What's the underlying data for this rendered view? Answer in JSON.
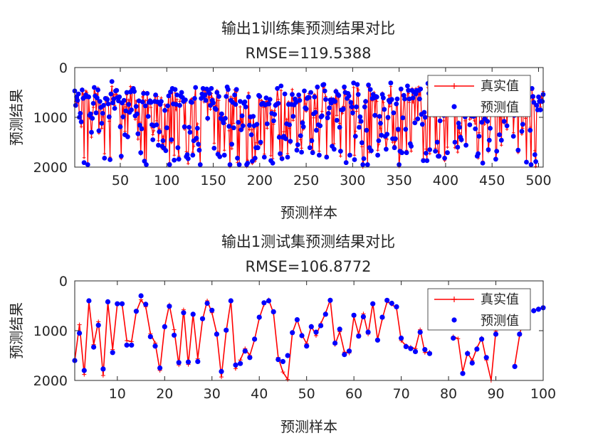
{
  "chart_data": [
    {
      "type": "line",
      "title": "输出1训练集预测结果对比",
      "subtitle": "RMSE=119.5388",
      "xlabel": "预测样本",
      "ylabel": "预测结果",
      "xlim": [
        1,
        505
      ],
      "ylim": [
        2000,
        0
      ],
      "y_reversed": true,
      "xticks": [
        50,
        100,
        150,
        200,
        250,
        300,
        350,
        400,
        450,
        500
      ],
      "yticks": [
        0,
        1000,
        2000
      ],
      "grid": false,
      "legend_position": "top-right",
      "n_points": 505,
      "seed": 11,
      "series": [
        {
          "name": "真实值",
          "color": "#ff0000",
          "style": "line-plus"
        },
        {
          "name": "预测值",
          "color": "#0000ff",
          "style": "dot"
        }
      ]
    },
    {
      "type": "line",
      "title": "输出1测试集预测结果对比",
      "subtitle": "RMSE=106.8772",
      "xlabel": "预测样本",
      "ylabel": "预测结果",
      "xlim": [
        1,
        100
      ],
      "ylim": [
        2000,
        0
      ],
      "y_reversed": true,
      "xticks": [
        10,
        20,
        30,
        40,
        50,
        60,
        70,
        80,
        90,
        100
      ],
      "yticks": [
        0,
        1000,
        2000
      ],
      "grid": false,
      "legend_position": "top-right",
      "series": [
        {
          "name": "真实值",
          "color": "#ff0000",
          "style": "line-plus",
          "values": [
            1600,
            880,
            1880,
            420,
            1280,
            820,
            1900,
            430,
            1380,
            460,
            470,
            1200,
            1220,
            620,
            380,
            520,
            1060,
            1250,
            1800,
            920,
            480,
            980,
            1690,
            580,
            1680,
            670,
            1560,
            780,
            400,
            640,
            1050,
            1930,
            1020,
            400,
            1760,
            1590,
            1360,
            1500,
            1180,
            750,
            470,
            380,
            650,
            1540,
            1830,
            1980,
            1040,
            780,
            1080,
            1260,
            910,
            1100,
            860,
            650,
            380,
            1280,
            1020,
            1430,
            1450,
            720,
            1070,
            660,
            1070,
            450,
            1180,
            760,
            420,
            470,
            550,
            1200,
            1300,
            1330,
            1360,
            980,
            1440,
            1430,
            null,
            null,
            null,
            null,
            1120,
            1160,
            1830,
            1440,
            1600,
            1350,
            1150,
            1590,
            2000,
            1010,
            null,
            null,
            null,
            1690,
            1100,
            650,
            null,
            590,
            560,
            540
          ]
        },
        {
          "name": "预测值",
          "color": "#0000ff",
          "style": "dot",
          "values": [
            1600,
            1050,
            1800,
            400,
            1330,
            890,
            1770,
            420,
            1440,
            460,
            460,
            1290,
            1290,
            610,
            300,
            470,
            1120,
            1310,
            1750,
            920,
            510,
            1090,
            1640,
            640,
            1630,
            670,
            1620,
            760,
            450,
            590,
            1070,
            1820,
            990,
            400,
            1690,
            1660,
            1410,
            1540,
            1170,
            730,
            440,
            400,
            620,
            1580,
            1620,
            1500,
            1040,
            780,
            1100,
            1310,
            920,
            1030,
            900,
            670,
            390,
            1250,
            970,
            1480,
            1410,
            690,
            1110,
            720,
            1030,
            460,
            1190,
            730,
            390,
            450,
            520,
            1150,
            1320,
            1360,
            1420,
            1030,
            1380,
            1460,
            null,
            null,
            null,
            null,
            1150,
            null,
            1860,
            1460,
            1650,
            1370,
            1170,
            1540,
            null,
            1070,
            null,
            null,
            null,
            1720,
            1070,
            620,
            null,
            600,
            570,
            540
          ]
        }
      ]
    }
  ]
}
